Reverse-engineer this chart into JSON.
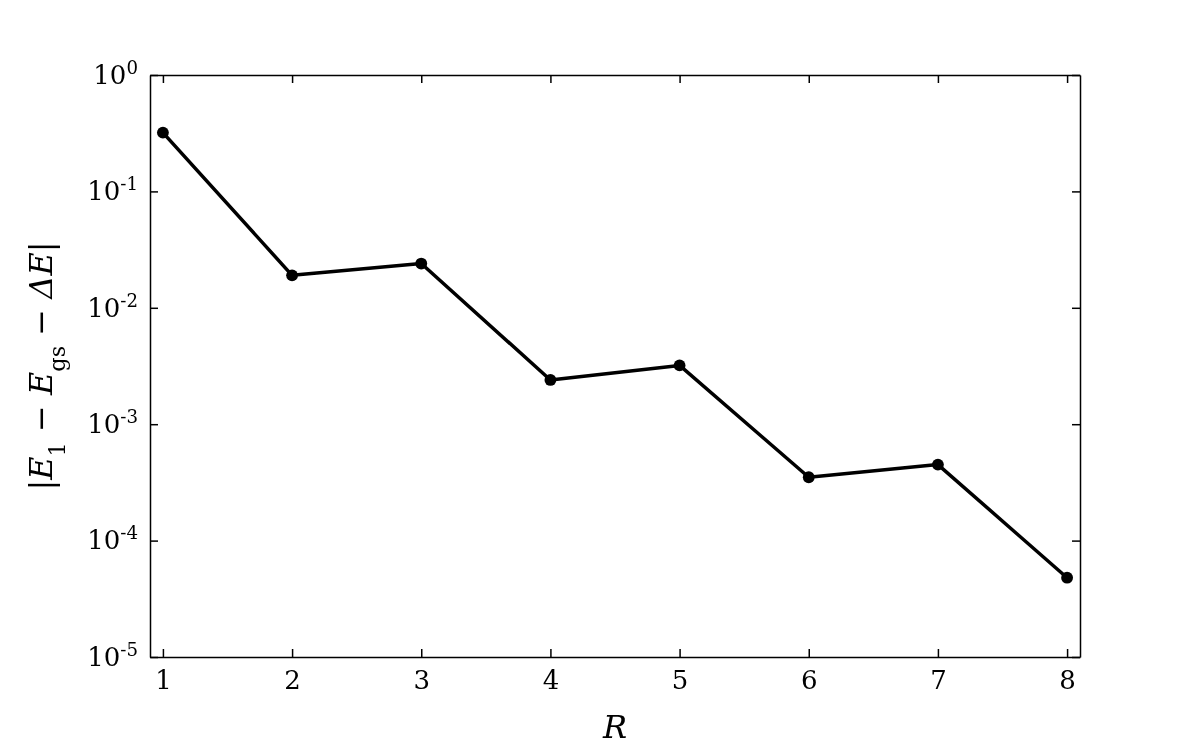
{
  "chart_data": {
    "type": "line",
    "xlabel": "R",
    "ylabel": "|E$_{1}$ − E$_{gs}$ − ΔE|",
    "x": [
      1,
      2,
      3,
      4,
      5,
      6,
      7,
      8
    ],
    "series": [
      {
        "color": "#000000",
        "values": [
          0.32,
          0.019,
          0.024,
          0.0024,
          0.0032,
          0.00035,
          0.00045,
          4.8e-05
        ]
      }
    ],
    "log": "y",
    "marker": "circle",
    "line_style": "solid",
    "grid": false,
    "xlim": [
      0.9,
      8.1
    ],
    "xticks": [
      1,
      2,
      3,
      4,
      5,
      6,
      7,
      8
    ],
    "ylim": [
      1e-05,
      1
    ],
    "yticks": [
      {
        "value": 1,
        "label": "10$^{0}$"
      },
      {
        "value": 0.1,
        "label": "10$^{-1}$"
      },
      {
        "value": 0.01,
        "label": "10$^{-2}$"
      },
      {
        "value": 0.001,
        "label": "10$^{-3}$"
      },
      {
        "value": 0.0001,
        "label": "10$^{-4}$"
      },
      {
        "value": 1e-05,
        "label": "10$^{-5}$"
      }
    ]
  }
}
